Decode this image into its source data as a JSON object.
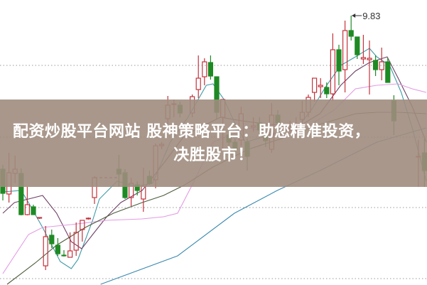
{
  "banner": {
    "line1": "配资炒股平台网站 股神策略平台：助您精准投资，",
    "line2": "决胜股市！",
    "background": "#a08c7e"
  },
  "chart_data": {
    "type": "candlestick",
    "title": "",
    "xlabel": "",
    "ylabel": "",
    "xlim": [
      0,
      69
    ],
    "ylim": [
      6.04,
      10.05
    ],
    "grid": {
      "style": "dotted horizontal",
      "levels": [
        9.13,
        8.12,
        7.13,
        6.13
      ]
    },
    "colors": {
      "up": "#c4323c",
      "down": "#1f8a24",
      "ma5": "#3f9aa6",
      "ma10": "#6e3f66",
      "ma20": "#e39ae3",
      "ma30": "#4d5c3c",
      "ma60": "#3a8ab0"
    },
    "annotations": [
      {
        "text": "9.83",
        "day": 57,
        "price": 9.83
      }
    ],
    "suspension_line": {
      "from_day": 15,
      "to_day": 19,
      "price": 7.55
    },
    "candles_columns": [
      "day",
      "open",
      "high",
      "low",
      "close"
    ],
    "candles": [
      [
        0,
        7.67,
        7.73,
        7.23,
        7.33
      ],
      [
        1,
        7.32,
        7.9,
        7.2,
        7.62
      ],
      [
        2,
        7.61,
        7.86,
        7.47,
        7.67
      ],
      [
        3,
        7.61,
        7.68,
        7.02,
        7.03
      ],
      [
        4,
        7.03,
        7.42,
        7.02,
        7.17
      ],
      [
        5,
        7.14,
        7.17,
        7.03,
        7.03
      ],
      [
        6,
        6.98,
        6.99,
        6.97,
        6.99
      ],
      [
        7,
        6.31,
        6.87,
        6.25,
        6.72
      ],
      [
        8,
        6.74,
        6.82,
        6.56,
        6.62
      ],
      [
        9,
        6.6,
        6.7,
        6.45,
        6.48
      ],
      [
        10,
        6.46,
        6.53,
        6.44,
        6.45
      ],
      [
        11,
        6.43,
        6.78,
        6.43,
        6.52
      ],
      [
        12,
        6.53,
        6.92,
        6.45,
        6.78
      ],
      [
        13,
        6.82,
        6.95,
        6.65,
        6.95
      ],
      [
        14,
        6.97,
        6.99,
        6.96,
        6.98
      ],
      [
        15,
        7.27,
        7.57,
        7.18,
        7.55
      ],
      [
        19,
        7.67,
        7.87,
        7.43,
        7.6
      ],
      [
        20,
        7.62,
        7.67,
        7.25,
        7.27
      ],
      [
        21,
        7.27,
        7.55,
        7.15,
        7.47
      ],
      [
        22,
        7.45,
        7.5,
        7.3,
        7.37
      ],
      [
        23,
        7.25,
        7.69,
        7.07,
        7.43
      ],
      [
        24,
        7.57,
        7.65,
        7.45,
        7.47
      ],
      [
        25,
        7.52,
        8.03,
        7.4,
        8.0
      ],
      [
        26,
        8.0,
        8.05,
        7.95,
        8.02
      ],
      [
        27,
        8.38,
        8.7,
        8.3,
        8.57
      ],
      [
        28,
        8.58,
        8.65,
        8.4,
        8.59
      ],
      [
        29,
        8.57,
        8.62,
        8.4,
        8.46
      ],
      [
        31,
        8.46,
        8.72,
        8.4,
        8.69
      ],
      [
        32,
        8.79,
        9.27,
        8.67,
        8.95
      ],
      [
        33,
        8.97,
        9.23,
        8.85,
        9.18
      ],
      [
        34,
        9.17,
        9.27,
        8.93,
        8.98
      ],
      [
        35,
        8.97,
        8.97,
        8.38,
        8.47
      ],
      [
        36,
        8.4,
        8.65,
        7.95,
        8.65
      ],
      [
        37,
        8.15,
        8.25,
        7.95,
        8.05
      ],
      [
        38,
        8.05,
        8.1,
        7.85,
        7.95
      ],
      [
        39,
        8.08,
        8.55,
        8.0,
        8.45
      ],
      [
        40,
        8.05,
        8.1,
        7.65,
        7.85
      ],
      [
        41,
        8.26,
        8.4,
        8.2,
        8.28
      ],
      [
        42,
        8.32,
        8.4,
        8.15,
        8.22
      ],
      [
        43,
        8.15,
        8.2,
        7.98,
        8.07
      ],
      [
        44,
        7.95,
        8.6,
        7.9,
        8.43
      ],
      [
        45,
        8.43,
        8.5,
        8.28,
        8.32
      ],
      [
        46,
        8.22,
        8.3,
        8.18,
        8.24
      ],
      [
        47,
        8.22,
        8.35,
        8.2,
        8.24
      ],
      [
        48,
        8.22,
        8.4,
        8.15,
        8.26
      ],
      [
        49,
        8.37,
        8.63,
        8.3,
        8.47
      ],
      [
        50,
        8.47,
        8.72,
        8.4,
        8.68
      ],
      [
        51,
        8.75,
        8.95,
        8.62,
        8.95
      ],
      [
        52,
        8.83,
        8.95,
        8.67,
        8.85
      ],
      [
        53,
        8.82,
        8.89,
        8.67,
        8.73
      ],
      [
        54,
        8.73,
        9.58,
        8.63,
        9.35
      ],
      [
        55,
        9.35,
        9.42,
        8.85,
        9.05
      ],
      [
        56,
        9.07,
        9.76,
        8.75,
        9.62
      ],
      [
        57,
        9.62,
        9.83,
        9.48,
        9.54
      ],
      [
        58,
        9.53,
        9.53,
        9.22,
        9.28
      ],
      [
        59,
        9.22,
        9.56,
        9.15,
        9.24
      ],
      [
        60,
        9.21,
        9.48,
        8.72,
        9.23
      ],
      [
        61,
        9.2,
        9.27,
        8.98,
        9.07
      ],
      [
        62,
        9.07,
        9.38,
        8.92,
        9.18
      ],
      [
        63,
        9.18,
        9.24,
        8.89,
        8.89
      ],
      [
        64,
        8.63,
        8.71,
        8.15,
        8.35
      ],
      [
        68,
        7.84,
        8.08,
        7.42,
        7.85
      ],
      [
        69,
        7.9,
        8.1,
        7.42,
        7.65
      ]
    ],
    "moving_averages": [
      {
        "key": "ma5",
        "points": [
          [
            0,
            7.35
          ],
          [
            3.0,
            7.37
          ],
          [
            4.2,
            7.2
          ],
          [
            6.5,
            6.85
          ],
          [
            9.4,
            6.37
          ],
          [
            11.2,
            6.27
          ],
          [
            12.3,
            6.4
          ],
          [
            14.7,
            6.95
          ],
          [
            15.8,
            7.25
          ],
          [
            18.7,
            7.5
          ],
          [
            21.6,
            7.43
          ],
          [
            24.5,
            7.47
          ],
          [
            27.4,
            8.05
          ],
          [
            30.3,
            8.4
          ],
          [
            33.3,
            8.85
          ],
          [
            34.4,
            8.87
          ],
          [
            36.2,
            8.65
          ],
          [
            37.9,
            8.33
          ],
          [
            39.7,
            8.05
          ],
          [
            43.7,
            8.15
          ],
          [
            48.4,
            8.27
          ],
          [
            50.7,
            8.53
          ],
          [
            53.0,
            8.85
          ],
          [
            55.3,
            9.13
          ],
          [
            57.7,
            9.25
          ],
          [
            60.0,
            9.37
          ],
          [
            61.2,
            9.25
          ],
          [
            63.3,
            9.13
          ],
          [
            65.2,
            8.75
          ],
          [
            67.0,
            8.25
          ],
          [
            69.3,
            7.5
          ]
        ]
      },
      {
        "key": "ma10",
        "points": [
          [
            0,
            7.05
          ],
          [
            1.9,
            7.2
          ],
          [
            4.2,
            7.25
          ],
          [
            6.5,
            7.3
          ],
          [
            8.8,
            7.05
          ],
          [
            11.2,
            6.65
          ],
          [
            12.9,
            6.55
          ],
          [
            14.7,
            6.75
          ],
          [
            17.0,
            7.0
          ],
          [
            19.3,
            7.2
          ],
          [
            22.8,
            7.37
          ],
          [
            26.3,
            7.75
          ],
          [
            29.8,
            8.15
          ],
          [
            35.6,
            8.4
          ],
          [
            39.1,
            8.35
          ],
          [
            43.7,
            8.3
          ],
          [
            48.4,
            8.27
          ],
          [
            51.9,
            8.45
          ],
          [
            55.3,
            8.85
          ],
          [
            57.7,
            9.05
          ],
          [
            60.0,
            9.17
          ],
          [
            62.9,
            9.25
          ],
          [
            64.7,
            8.95
          ],
          [
            67.0,
            8.55
          ],
          [
            69.3,
            8.05
          ]
        ]
      },
      {
        "key": "ma20",
        "points": [
          [
            0,
            6.2
          ],
          [
            1.9,
            6.45
          ],
          [
            4.2,
            6.75
          ],
          [
            6.5,
            6.85
          ],
          [
            8.8,
            6.87
          ],
          [
            11.2,
            6.89
          ],
          [
            17.0,
            6.95
          ],
          [
            22.8,
            6.97
          ],
          [
            26.3,
            7.0
          ],
          [
            28.6,
            7.05
          ],
          [
            31.0,
            7.45
          ],
          [
            34.4,
            8.05
          ],
          [
            40.2,
            8.25
          ],
          [
            46.0,
            8.15
          ],
          [
            49.5,
            8.25
          ],
          [
            54.2,
            8.5
          ],
          [
            57.7,
            8.8
          ],
          [
            61.2,
            8.85
          ],
          [
            64.7,
            8.87
          ],
          [
            67.0,
            8.8
          ],
          [
            69.3,
            8.75
          ]
        ]
      },
      {
        "key": "ma30",
        "points": [
          [
            0.7,
            6.05
          ],
          [
            5.3,
            6.35
          ],
          [
            8.8,
            6.6
          ],
          [
            13.5,
            6.85
          ],
          [
            18.1,
            7.05
          ],
          [
            22.8,
            7.2
          ],
          [
            26.3,
            7.3
          ],
          [
            29.8,
            7.45
          ],
          [
            34.4,
            7.7
          ],
          [
            40.2,
            7.95
          ],
          [
            45.6,
            8.1
          ],
          [
            51.9,
            8.3
          ],
          [
            57.7,
            8.45
          ],
          [
            61.2,
            8.47
          ],
          [
            64.7,
            8.47
          ],
          [
            69.3,
            8.45
          ]
        ]
      },
      {
        "key": "ma60",
        "points": [
          [
            16.0,
            6.05
          ],
          [
            28.6,
            6.45
          ],
          [
            37.9,
            7.05
          ],
          [
            44.9,
            7.37
          ],
          [
            51.9,
            7.65
          ],
          [
            61.2,
            8.05
          ],
          [
            69.3,
            8.25
          ]
        ]
      }
    ]
  }
}
